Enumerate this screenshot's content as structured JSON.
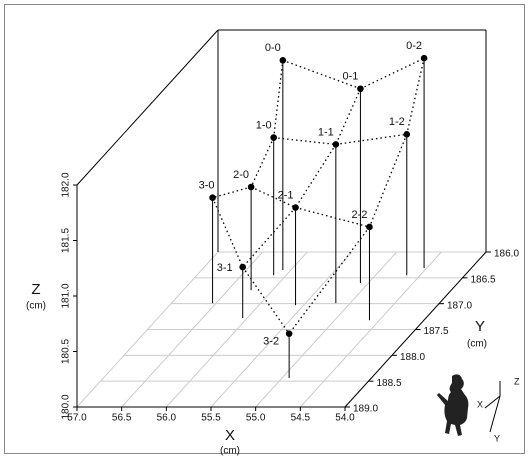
{
  "chart_data": {
    "type": "scatter3d",
    "xlabel": "X",
    "xunit": "(cm)",
    "ylabel": "Y",
    "yunit": "(cm)",
    "zlabel": "Z",
    "zunit": "(cm)",
    "xlim": [
      57,
      54
    ],
    "ylim": [
      186,
      189
    ],
    "zlim": [
      180,
      182
    ],
    "xticks": [
      {
        "value": 57,
        "label": "57.0"
      },
      {
        "value": 56.5,
        "label": "56.5"
      },
      {
        "value": 56,
        "label": "56.0"
      },
      {
        "value": 55.5,
        "label": "55.5"
      },
      {
        "value": 55,
        "label": "55.0"
      },
      {
        "value": 54.5,
        "label": "54.5"
      },
      {
        "value": 54,
        "label": "54.0"
      }
    ],
    "yticks": [
      {
        "value": 186,
        "label": "186.0"
      },
      {
        "value": 186.5,
        "label": "186.5"
      },
      {
        "value": 187,
        "label": "187.0"
      },
      {
        "value": 187.5,
        "label": "187.5"
      },
      {
        "value": 188,
        "label": "188.0"
      },
      {
        "value": 188.5,
        "label": "188.5"
      },
      {
        "value": 189,
        "label": "189.0"
      }
    ],
    "zticks": [
      {
        "value": 180,
        "label": "180.0"
      },
      {
        "value": 180.5,
        "label": "180.5"
      },
      {
        "value": 181,
        "label": "181.0"
      },
      {
        "value": 181.5,
        "label": "181.5"
      },
      {
        "value": 182,
        "label": "182.0"
      }
    ],
    "grid": true,
    "color": "#000000",
    "points": [
      {
        "label": "0-0",
        "x": 56.09,
        "y": 186.35,
        "z": 181.89
      },
      {
        "label": "0-1",
        "x": 55.09,
        "y": 186.6,
        "z": 181.75
      },
      {
        "label": "0-2",
        "x": 54.53,
        "y": 186.31,
        "z": 181.89
      },
      {
        "label": "1-0",
        "x": 56.14,
        "y": 186.45,
        "z": 181.24
      },
      {
        "label": "1-1",
        "x": 55.16,
        "y": 186.99,
        "z": 181.43
      },
      {
        "label": "1-2",
        "x": 54.65,
        "y": 186.45,
        "z": 181.27
      },
      {
        "label": "2-0",
        "x": 56.24,
        "y": 186.74,
        "z": 180.93
      },
      {
        "label": "2-1",
        "x": 55.59,
        "y": 187.03,
        "z": 180.88
      },
      {
        "label": "2-2",
        "x": 54.61,
        "y": 187.32,
        "z": 180.84
      },
      {
        "label": "3-0",
        "x": 56.54,
        "y": 186.99,
        "z": 180.95
      },
      {
        "label": "3-1",
        "x": 56.05,
        "y": 187.28,
        "z": 180.46
      },
      {
        "label": "3-2",
        "x": 54.92,
        "y": 188.44,
        "z": 180.4
      }
    ],
    "inset": {
      "labels": [
        "Z",
        "X",
        "Y"
      ]
    }
  }
}
